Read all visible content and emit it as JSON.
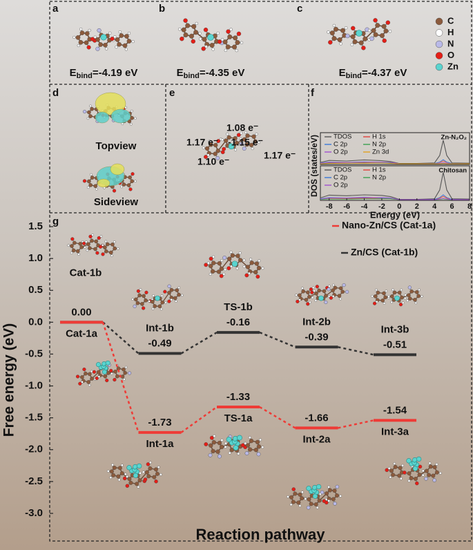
{
  "panels": [
    {
      "letter": "a",
      "energy": {
        "symbol": "E",
        "subscript": "bind",
        "text": "=-4.19 eV"
      }
    },
    {
      "letter": "b",
      "energy": {
        "symbol": "E",
        "subscript": "bind",
        "text": "=-4.35 eV"
      }
    },
    {
      "letter": "c",
      "energy": {
        "symbol": "E",
        "subscript": "bind",
        "text": "=-4.37 eV"
      }
    }
  ],
  "atom_legend": [
    {
      "label": "C",
      "color": "#8b5a3c"
    },
    {
      "label": "H",
      "color": "#ffffff"
    },
    {
      "label": "N",
      "color": "#b9b9e8"
    },
    {
      "label": "O",
      "color": "#e41e17"
    },
    {
      "label": "Zn",
      "color": "#5ad4cf"
    }
  ],
  "panel_d": {
    "letter": "d",
    "top": "Topview",
    "side": "Sideview"
  },
  "panel_e": {
    "letter": "e",
    "charges": [
      "1.08 e⁻",
      "1.17 e⁻",
      "-1.15 e⁻",
      "1.17 e⁻",
      "1.10 e⁻"
    ]
  },
  "panel_f": {
    "letter": "f"
  },
  "panel_g": {
    "letter": "g"
  },
  "chart_data": [
    {
      "type": "line",
      "label": "Zn-N₂O₂",
      "x": [
        -9,
        -8,
        -6,
        -4,
        -2,
        -1,
        0,
        2,
        4,
        4.6,
        5,
        5.4,
        6,
        8
      ],
      "xlim": [
        -9,
        8
      ],
      "ylim": [
        0,
        10
      ],
      "series": [
        {
          "name": "TDOS",
          "color": "#555555",
          "values": [
            0.5,
            1.2,
            1.0,
            1.4,
            1.1,
            0.8,
            0.1,
            0.1,
            0.3,
            3,
            8.5,
            3,
            0.3,
            0.2
          ]
        },
        {
          "name": "H 1s",
          "color": "#e0403a",
          "values": [
            0.2,
            0.4,
            0.3,
            0.4,
            0.3,
            0.2,
            0,
            0,
            0.1,
            0.5,
            1,
            0.5,
            0.1,
            0
          ]
        },
        {
          "name": "C 2p",
          "color": "#3a78d8",
          "values": [
            0.3,
            0.6,
            0.5,
            0.7,
            0.5,
            0.4,
            0,
            0,
            0.1,
            0.6,
            1.5,
            0.6,
            0.1,
            0
          ]
        },
        {
          "name": "N 2p",
          "color": "#3aa050",
          "values": [
            0.1,
            0.2,
            0.2,
            0.3,
            0.3,
            0.3,
            0,
            0,
            0,
            0.1,
            0.3,
            0.1,
            0,
            0
          ]
        },
        {
          "name": "O 2p",
          "color": "#a050d0",
          "values": [
            0.2,
            0.5,
            0.5,
            0.6,
            0.6,
            0.5,
            0,
            0,
            0,
            0.2,
            0.4,
            0.2,
            0,
            0
          ]
        },
        {
          "name": "Zn 3d",
          "color": "#e0a020",
          "values": [
            0,
            0.1,
            0.2,
            0.2,
            0.3,
            0.1,
            0,
            0,
            0,
            0,
            0.1,
            0,
            0,
            0
          ]
        }
      ]
    },
    {
      "type": "line",
      "label": "Chitosan",
      "x": [
        -9,
        -8,
        -6,
        -4,
        -2,
        -1,
        0,
        2,
        4,
        4.6,
        5,
        5.4,
        6,
        8
      ],
      "xlim": [
        -9,
        8
      ],
      "ylim": [
        0,
        10
      ],
      "xticks": [
        -8,
        -6,
        -4,
        -2,
        0,
        2,
        4,
        6,
        8
      ],
      "xlabel": "Energy (eV)",
      "ylabel": "DOS (states/eV)",
      "series": [
        {
          "name": "TDOS",
          "color": "#555555",
          "values": [
            0.6,
            1.5,
            1.3,
            1.6,
            1.4,
            1.0,
            0.1,
            0.1,
            0.3,
            3.2,
            9,
            3.2,
            0.3,
            0.2
          ]
        },
        {
          "name": "H 1s",
          "color": "#e0403a",
          "values": [
            0.2,
            0.5,
            0.4,
            0.5,
            0.4,
            0.3,
            0,
            0,
            0.1,
            0.5,
            1.1,
            0.5,
            0.1,
            0
          ]
        },
        {
          "name": "C 2p",
          "color": "#3a78d8",
          "values": [
            0.3,
            0.7,
            0.6,
            0.8,
            0.6,
            0.5,
            0,
            0,
            0.1,
            0.7,
            1.6,
            0.7,
            0.1,
            0
          ]
        },
        {
          "name": "N 2p",
          "color": "#3aa050",
          "values": [
            0.1,
            0.2,
            0.2,
            0.3,
            0.3,
            0.3,
            0,
            0,
            0,
            0.1,
            0.3,
            0.1,
            0,
            0
          ]
        },
        {
          "name": "O 2p",
          "color": "#a050d0",
          "values": [
            0.2,
            0.6,
            0.6,
            0.7,
            0.7,
            0.6,
            0,
            0,
            0,
            0.2,
            0.4,
            0.2,
            0,
            0
          ]
        }
      ]
    },
    {
      "type": "energy",
      "xlabel": "Reaction pathway",
      "ylabel": "Free energy (eV)",
      "ylim": [
        -3.0,
        1.5
      ],
      "yticks": [
        1.5,
        {
          "value": 1.0,
          "label": "1.0"
        },
        0.5,
        {
          "value": 0,
          "label": "0.0"
        },
        -0.5,
        {
          "value": -1.0,
          "label": "-1.0"
        },
        -1.5,
        {
          "value": -2.0,
          "label": "-2.0"
        },
        -2.5,
        {
          "value": -3.0,
          "label": "-3.0"
        }
      ],
      "series": [
        {
          "name": "Zn/CS (Cat-1b)",
          "color": "#333333",
          "values": [
            0,
            -0.49,
            -0.16,
            -0.39,
            -0.51
          ],
          "value_labels": [
            null,
            "-0.49",
            "-0.16",
            "-0.39",
            "-0.51"
          ],
          "labels": [
            "Cat-1b",
            "Int-1b",
            "TS-1b",
            "Int-2b",
            "Int-3b"
          ]
        },
        {
          "name": "Nano-Zn/CS (Cat-1a)",
          "color": "#ee3b36",
          "values": [
            0,
            -1.73,
            -1.33,
            -1.66,
            -1.54
          ],
          "value_labels": [
            "0.00",
            "-1.73",
            "-1.33",
            "-1.66",
            "-1.54"
          ],
          "labels": [
            "Cat-1a",
            "Int-1a",
            "TS-1a",
            "Int-2a",
            "Int-3a"
          ]
        }
      ]
    }
  ]
}
